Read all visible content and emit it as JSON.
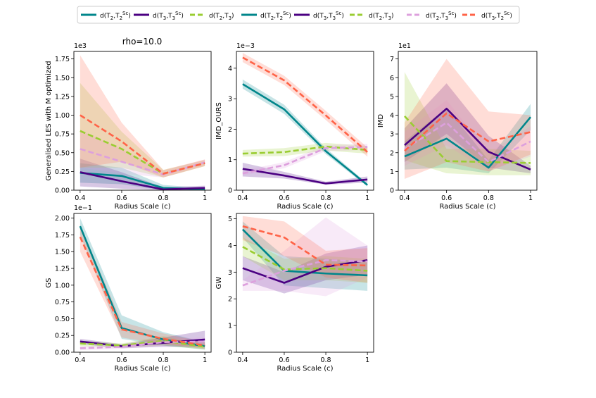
{
  "figure_title": "rho=10.0",
  "legend": [
    {
      "name": "d(T2,T2^Sc)",
      "base": "d(T",
      "sub1": "2",
      "mid": ",T",
      "sub2": "2",
      "sup2": "Sc",
      "color": "#00868b",
      "dash": "solid",
      "end": ")"
    },
    {
      "name": "d(T3,T3^Sc)",
      "base": "d(T",
      "sub1": "3",
      "mid": ",T",
      "sub2": "3",
      "sup2": "Sc",
      "color": "#4b0082",
      "dash": "solid",
      "end": ")"
    },
    {
      "name": "d(T2,T3)",
      "base": "d(T",
      "sub1": "2",
      "mid": ",T",
      "sub2": "3",
      "sup2": "",
      "color": "#9acd32",
      "dash": "dashed",
      "end": ")"
    },
    {
      "name": "d(T2,T3^Sc)",
      "base": "d(T",
      "sub1": "2",
      "mid": ",T",
      "sub2": "3",
      "sup2": "Sc",
      "color": "#dda0dd",
      "dash": "dashed",
      "end": ")"
    },
    {
      "name": "d(T3,T2^Sc)",
      "base": "d(T",
      "sub1": "3",
      "mid": ",T",
      "sub2": "2",
      "sup2": "Sc",
      "color": "#ff6347",
      "dash": "dashed",
      "end": ")"
    }
  ],
  "chart_data": [
    {
      "type": "line",
      "ylabel": "Generalised LES with M optimized",
      "xlabel": "Radius Scale (c)",
      "scale_label": "1e3",
      "x": [
        0.4,
        0.6,
        0.8,
        1.0
      ],
      "xticks": [
        "0.4",
        "0.6",
        "0.8",
        "1"
      ],
      "ylim": [
        0,
        1.85
      ],
      "yticks": [
        0,
        0.25,
        0.5,
        0.75,
        1.0,
        1.25,
        1.5,
        1.75
      ],
      "yticklabels": [
        "0.00",
        "0.25",
        "0.50",
        "0.75",
        "1.00",
        "1.25",
        "1.50",
        "1.75"
      ],
      "series": [
        {
          "name": "d(T2,T2^Sc)",
          "values": [
            0.23,
            0.19,
            0.03,
            0.01
          ],
          "lower": [
            0.1,
            0.08,
            0.0,
            0.0
          ],
          "upper": [
            0.36,
            0.3,
            0.07,
            0.03
          ]
        },
        {
          "name": "d(T3,T3^Sc)",
          "values": [
            0.24,
            0.12,
            0.01,
            0.03
          ],
          "lower": [
            0.05,
            0.02,
            0.0,
            0.0
          ],
          "upper": [
            0.42,
            0.24,
            0.04,
            0.06
          ]
        },
        {
          "name": "d(T2,T3)",
          "values": [
            0.79,
            0.55,
            0.22,
            0.36
          ],
          "lower": [
            0.3,
            0.3,
            0.17,
            0.32
          ],
          "upper": [
            1.43,
            0.78,
            0.27,
            0.4
          ]
        },
        {
          "name": "d(T2,T3^Sc)",
          "values": [
            0.55,
            0.38,
            0.21,
            0.37
          ],
          "lower": [
            0.3,
            0.22,
            0.17,
            0.33
          ],
          "upper": [
            0.8,
            0.55,
            0.26,
            0.41
          ]
        },
        {
          "name": "d(T3,T2^Sc)",
          "values": [
            1.0,
            0.65,
            0.22,
            0.36
          ],
          "lower": [
            0.3,
            0.38,
            0.17,
            0.32
          ],
          "upper": [
            1.8,
            0.9,
            0.27,
            0.41
          ]
        }
      ]
    },
    {
      "type": "line",
      "ylabel": "IMD_OURS",
      "xlabel": "Radius Scale (c)",
      "scale_label": "1e−3",
      "x": [
        0.4,
        0.6,
        0.8,
        1.0
      ],
      "xticks": [
        "0.4",
        "0.6",
        "0.8",
        "1"
      ],
      "ylim": [
        0,
        4.55
      ],
      "yticks": [
        0,
        1,
        2,
        3,
        4
      ],
      "yticklabels": [
        "0",
        "1",
        "2",
        "3",
        "4"
      ],
      "series": [
        {
          "name": "d(T2,T2^Sc)",
          "values": [
            3.48,
            2.65,
            1.28,
            0.17
          ],
          "lower": [
            3.33,
            2.5,
            1.18,
            0.12
          ],
          "upper": [
            3.63,
            2.8,
            1.38,
            0.22
          ]
        },
        {
          "name": "d(T3,T3^Sc)",
          "values": [
            0.7,
            0.48,
            0.22,
            0.35
          ],
          "lower": [
            0.45,
            0.38,
            0.18,
            0.25
          ],
          "upper": [
            0.9,
            0.6,
            0.28,
            0.45
          ]
        },
        {
          "name": "d(T2,T3)",
          "values": [
            1.2,
            1.25,
            1.43,
            1.32
          ],
          "lower": [
            1.1,
            1.12,
            1.3,
            1.2
          ],
          "upper": [
            1.32,
            1.38,
            1.55,
            1.45
          ]
        },
        {
          "name": "d(T2,T3^Sc)",
          "values": [
            0.55,
            0.82,
            1.38,
            1.42
          ],
          "lower": [
            0.48,
            0.72,
            1.28,
            1.32
          ],
          "upper": [
            0.65,
            0.92,
            1.48,
            1.52
          ]
        },
        {
          "name": "d(T3,T2^Sc)",
          "values": [
            4.35,
            3.6,
            2.45,
            1.25
          ],
          "lower": [
            4.2,
            3.45,
            2.3,
            1.1
          ],
          "upper": [
            4.5,
            3.75,
            2.6,
            1.4
          ]
        }
      ]
    },
    {
      "type": "line",
      "ylabel": "IMD",
      "xlabel": "Radius Scale (c)",
      "scale_label": "1e1",
      "x": [
        0.4,
        0.6,
        0.8,
        1.0
      ],
      "xticks": [
        "0.4",
        "0.6",
        "0.8",
        "1"
      ],
      "ylim": [
        0,
        7.4
      ],
      "yticks": [
        0,
        1,
        2,
        3,
        4,
        5,
        6,
        7
      ],
      "yticklabels": [
        "0",
        "1",
        "2",
        "3",
        "4",
        "5",
        "6",
        "7"
      ],
      "series": [
        {
          "name": "d(T2,T2^Sc)",
          "values": [
            1.8,
            2.75,
            1.2,
            3.9
          ],
          "lower": [
            1.1,
            1.2,
            0.9,
            3.2
          ],
          "upper": [
            2.6,
            4.4,
            1.6,
            4.6
          ]
        },
        {
          "name": "d(T3,T3^Sc)",
          "values": [
            2.4,
            4.35,
            2.05,
            1.1
          ],
          "lower": [
            1.5,
            3.0,
            1.2,
            0.9
          ],
          "upper": [
            3.3,
            5.7,
            2.9,
            1.3
          ]
        },
        {
          "name": "d(T2,T3)",
          "values": [
            3.95,
            1.55,
            1.5,
            1.45
          ],
          "lower": [
            1.6,
            0.9,
            0.8,
            0.8
          ],
          "upper": [
            6.3,
            2.2,
            2.2,
            2.1
          ]
        },
        {
          "name": "d(T2,T3^Sc)",
          "values": [
            2.2,
            3.6,
            1.5,
            2.6
          ],
          "lower": [
            1.3,
            2.4,
            1.0,
            1.8
          ],
          "upper": [
            3.1,
            4.8,
            2.0,
            3.4
          ]
        },
        {
          "name": "d(T3,T2^Sc)",
          "values": [
            2.1,
            4.1,
            2.6,
            3.1
          ],
          "lower": [
            0.6,
            1.5,
            1.0,
            1.9
          ],
          "upper": [
            3.6,
            7.0,
            4.2,
            4.0
          ]
        }
      ]
    },
    {
      "type": "line",
      "ylabel": "GS",
      "xlabel": "Radius Scale (c)",
      "scale_label": "1e−1",
      "x": [
        0.4,
        0.6,
        0.8,
        1.0
      ],
      "xticks": [
        "0.4",
        "0.6",
        "0.8",
        "1"
      ],
      "ylim": [
        0,
        2.07
      ],
      "yticks": [
        0,
        0.25,
        0.5,
        0.75,
        1.0,
        1.25,
        1.5,
        1.75,
        2.0
      ],
      "yticklabels": [
        "0.00",
        "0.25",
        "0.50",
        "0.75",
        "1.00",
        "1.25",
        "1.50",
        "1.75",
        "2.00"
      ],
      "series": [
        {
          "name": "d(T2,T2^Sc)",
          "values": [
            1.88,
            0.36,
            0.19,
            0.09
          ],
          "lower": [
            1.75,
            0.2,
            0.1,
            0.04
          ],
          "upper": [
            2.0,
            0.55,
            0.3,
            0.15
          ]
        },
        {
          "name": "d(T3,T3^Sc)",
          "values": [
            0.16,
            0.09,
            0.14,
            0.19
          ],
          "lower": [
            0.12,
            0.06,
            0.08,
            0.08
          ],
          "upper": [
            0.2,
            0.12,
            0.22,
            0.32
          ]
        },
        {
          "name": "d(T2,T3)",
          "values": [
            0.13,
            0.1,
            0.17,
            0.08
          ],
          "lower": [
            0.09,
            0.07,
            0.1,
            0.04
          ],
          "upper": [
            0.17,
            0.13,
            0.24,
            0.12
          ]
        },
        {
          "name": "d(T2,T3^Sc)",
          "values": [
            0.06,
            0.08,
            0.15,
            0.16
          ],
          "lower": [
            0.03,
            0.05,
            0.1,
            0.1
          ],
          "upper": [
            0.09,
            0.11,
            0.2,
            0.22
          ]
        },
        {
          "name": "d(T3,T2^Sc)",
          "values": [
            1.72,
            0.34,
            0.2,
            0.1
          ],
          "lower": [
            1.5,
            0.22,
            0.12,
            0.05
          ],
          "upper": [
            1.9,
            0.45,
            0.28,
            0.15
          ]
        }
      ]
    },
    {
      "type": "line",
      "ylabel": "GW",
      "xlabel": "Radius Scale (c)",
      "scale_label": "",
      "x": [
        0.4,
        0.6,
        0.8,
        1.0
      ],
      "xticks": [
        "0.4",
        "0.6",
        "0.8",
        "1"
      ],
      "ylim": [
        0,
        5.2
      ],
      "yticks": [
        0,
        1,
        2,
        3,
        4,
        5
      ],
      "yticklabels": [
        "0",
        "1",
        "2",
        "3",
        "4",
        "5"
      ],
      "series": [
        {
          "name": "d(T2,T2^Sc)",
          "values": [
            4.6,
            3.05,
            2.95,
            2.88
          ],
          "lower": [
            4.3,
            2.5,
            2.4,
            2.3
          ],
          "upper": [
            4.9,
            3.6,
            3.5,
            3.4
          ]
        },
        {
          "name": "d(T3,T3^Sc)",
          "values": [
            3.15,
            2.6,
            3.2,
            3.45
          ],
          "lower": [
            2.7,
            2.2,
            2.7,
            2.9
          ],
          "upper": [
            3.6,
            3.0,
            3.7,
            4.0
          ]
        },
        {
          "name": "d(T2,T3)",
          "values": [
            3.95,
            3.1,
            3.15,
            3.05
          ],
          "lower": [
            3.6,
            2.7,
            2.7,
            2.6
          ],
          "upper": [
            4.3,
            3.5,
            3.6,
            3.5
          ]
        },
        {
          "name": "d(T2,T3^Sc)",
          "values": [
            2.5,
            3.05,
            3.45,
            3.4
          ],
          "lower": [
            2.3,
            2.3,
            2.1,
            2.8
          ],
          "upper": [
            2.7,
            3.8,
            5.05,
            4.0
          ]
        },
        {
          "name": "d(T3,T2^Sc)",
          "values": [
            4.72,
            4.3,
            3.28,
            3.25
          ],
          "lower": [
            4.2,
            3.6,
            2.8,
            2.6
          ],
          "upper": [
            5.1,
            4.9,
            3.8,
            3.9
          ]
        }
      ]
    }
  ]
}
